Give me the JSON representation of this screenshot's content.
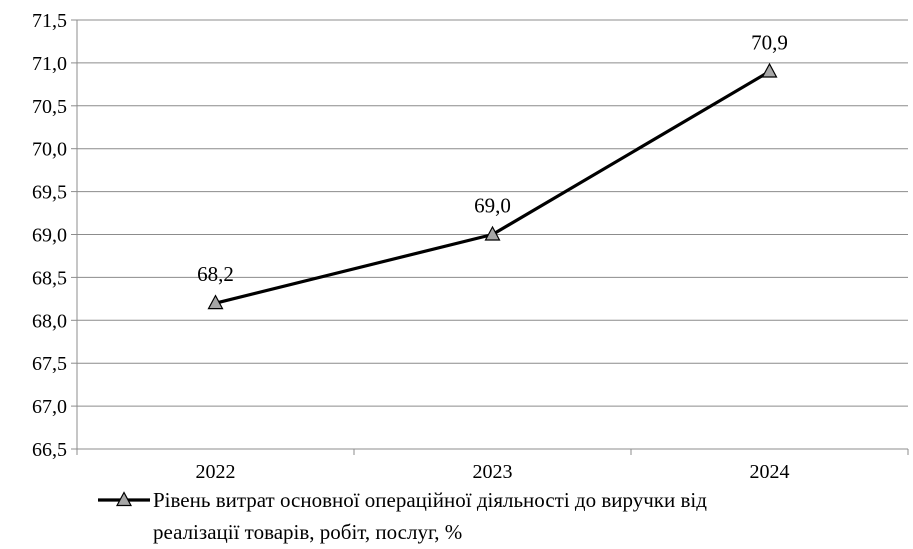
{
  "chart_data": {
    "type": "line",
    "title": "",
    "xlabel": "",
    "ylabel": "",
    "categories": [
      "2022",
      "2023",
      "2024"
    ],
    "series": [
      {
        "name": "Рівень витрат основної операційної діяльності до виручки від реалізації товарів, робіт, послуг, %",
        "values": [
          68.2,
          69.0,
          70.9
        ],
        "data_labels": [
          "68,2",
          "69,0",
          "70,9"
        ]
      }
    ],
    "ylim": [
      66.5,
      71.5
    ],
    "y_ticks": [
      66.5,
      67.0,
      67.5,
      68.0,
      68.5,
      69.0,
      69.5,
      70.0,
      70.5,
      71.0,
      71.5
    ],
    "y_tick_labels": [
      "66,5",
      "67,0",
      "67,5",
      "68,0",
      "68,5",
      "69,0",
      "69,5",
      "70,0",
      "70,5",
      "71,0",
      "71,5"
    ],
    "grid": "horizontal",
    "legend_position": "bottom",
    "legend_lines": [
      "Рівень витрат основної операційної діяльності до виручки від",
      "реалізації товарів, робіт, послуг, %"
    ],
    "colors": {
      "line": "#000000",
      "marker_fill": "#a6a6a6",
      "grid": "#8c8c8c",
      "axis": "#8c8c8c"
    },
    "marker": "triangle"
  }
}
